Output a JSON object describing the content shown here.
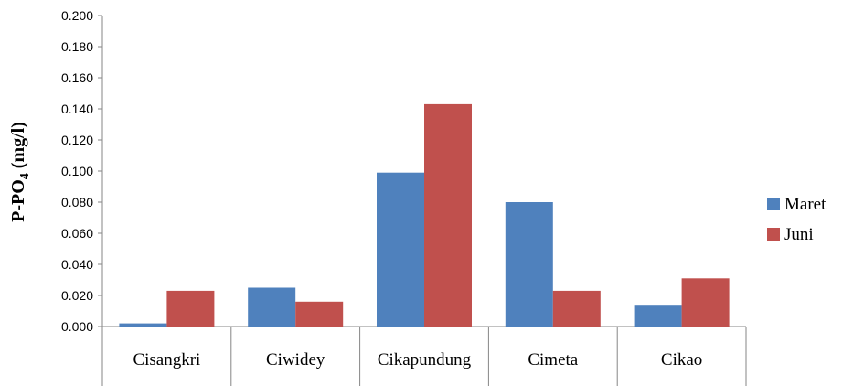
{
  "chart_data": {
    "type": "bar",
    "categories": [
      "Cisangkri",
      "Ciwidey",
      "Cikapundung",
      "Cimeta",
      "Cikao"
    ],
    "series": [
      {
        "name": "Maret",
        "color": "#4F81BD",
        "values": [
          0.002,
          0.025,
          0.099,
          0.08,
          0.014
        ]
      },
      {
        "name": "Juni",
        "color": "#C0504D",
        "values": [
          0.023,
          0.016,
          0.143,
          0.023,
          0.031
        ]
      }
    ],
    "ylim": [
      0,
      0.2
    ],
    "yticks": [
      "0.000",
      "0.020",
      "0.040",
      "0.060",
      "0.080",
      "0.100",
      "0.120",
      "0.140",
      "0.160",
      "0.180",
      "0.200"
    ],
    "ylabel": {
      "main": "P-PO",
      "sub": "4",
      "unit": " (mg/l)"
    },
    "xlabel": "",
    "title": "",
    "legend_position": "right",
    "grid": false
  }
}
